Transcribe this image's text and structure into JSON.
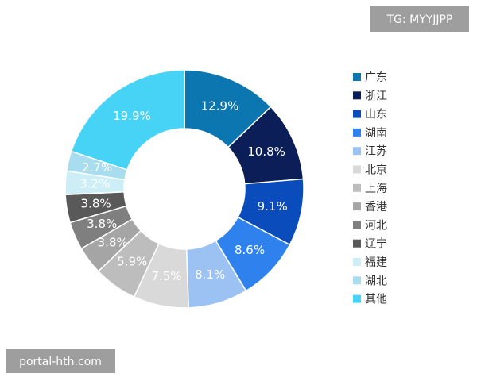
{
  "chart_data": {
    "type": "donut",
    "categories": [
      "广东",
      "浙江",
      "山东",
      "湖南",
      "江苏",
      "北京",
      "上海",
      "香港",
      "河北",
      "辽宁",
      "福建",
      "湖北",
      "其他"
    ],
    "values": [
      12.9,
      10.8,
      9.1,
      8.6,
      8.1,
      7.5,
      5.9,
      3.8,
      3.8,
      3.8,
      3.2,
      2.7,
      19.9
    ],
    "value_labels": [
      "12.9%",
      "10.8%",
      "9.1%",
      "8.6%",
      "8.1%",
      "7.5%",
      "5.9%",
      "3.8%",
      "3.8%",
      "3.8%",
      "3.2%",
      "2.7%",
      "19.9%"
    ],
    "colors": [
      "#0b76b0",
      "#0c1e58",
      "#0a4cbc",
      "#2f82ee",
      "#9cc2f4",
      "#d9d9d9",
      "#bdbdbd",
      "#a5a5a5",
      "#7f7f7f",
      "#595959",
      "#cdeef6",
      "#a8dcef",
      "#46d3f6"
    ],
    "legend": "right"
  },
  "watermarks": [
    "TG: MYYJJPP",
    "portal-hth.com"
  ]
}
